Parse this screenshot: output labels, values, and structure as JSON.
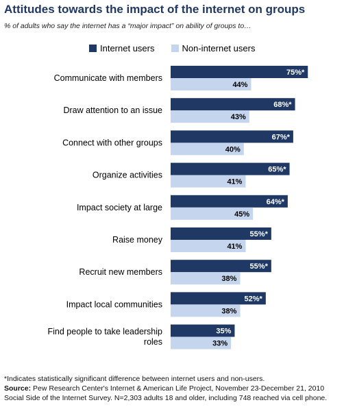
{
  "title": "Attitudes towards the impact of the internet on groups",
  "subtitle": "% of adults who say the internet has a “major impact” on ability of groups to…",
  "colors": {
    "internet_users": "#1f3864",
    "non_internet_users": "#c5d5ee"
  },
  "chart_data": {
    "type": "bar",
    "orientation": "horizontal",
    "categories": [
      [
        "Communicate with members"
      ],
      [
        "Draw attention to an issue"
      ],
      [
        "Connect with other groups"
      ],
      [
        "Organize activities"
      ],
      [
        "Impact society at large"
      ],
      [
        "Raise money"
      ],
      [
        "Recruit new members"
      ],
      [
        "Impact local communities"
      ],
      [
        "Find people to take leadership",
        "roles"
      ]
    ],
    "series": [
      {
        "name": "Internet users",
        "values": [
          75,
          68,
          67,
          65,
          64,
          55,
          55,
          52,
          35
        ],
        "labels": [
          "75%*",
          "68%*",
          "67%*",
          "65%*",
          "64%*",
          "55%*",
          "55%*",
          "52%*",
          "35%"
        ]
      },
      {
        "name": "Non-internet users",
        "values": [
          44,
          43,
          40,
          41,
          45,
          41,
          38,
          38,
          33
        ],
        "labels": [
          "44%",
          "43%",
          "40%",
          "41%",
          "45%",
          "41%",
          "38%",
          "38%",
          "33%"
        ]
      }
    ],
    "xlim": [
      0,
      100
    ],
    "legend": "top",
    "grid": false
  },
  "footnotes": {
    "note": "*Indicates statistically significant difference between internet users and non-users.",
    "source_label": "Source:",
    "source_text": "Pew Research Center's Internet & American Life Project, November 23-December 21, 2010",
    "survey": "Social Side of the Internet Survey. N=2,303 adults 18 and older, including 748 reached via cell phone."
  }
}
